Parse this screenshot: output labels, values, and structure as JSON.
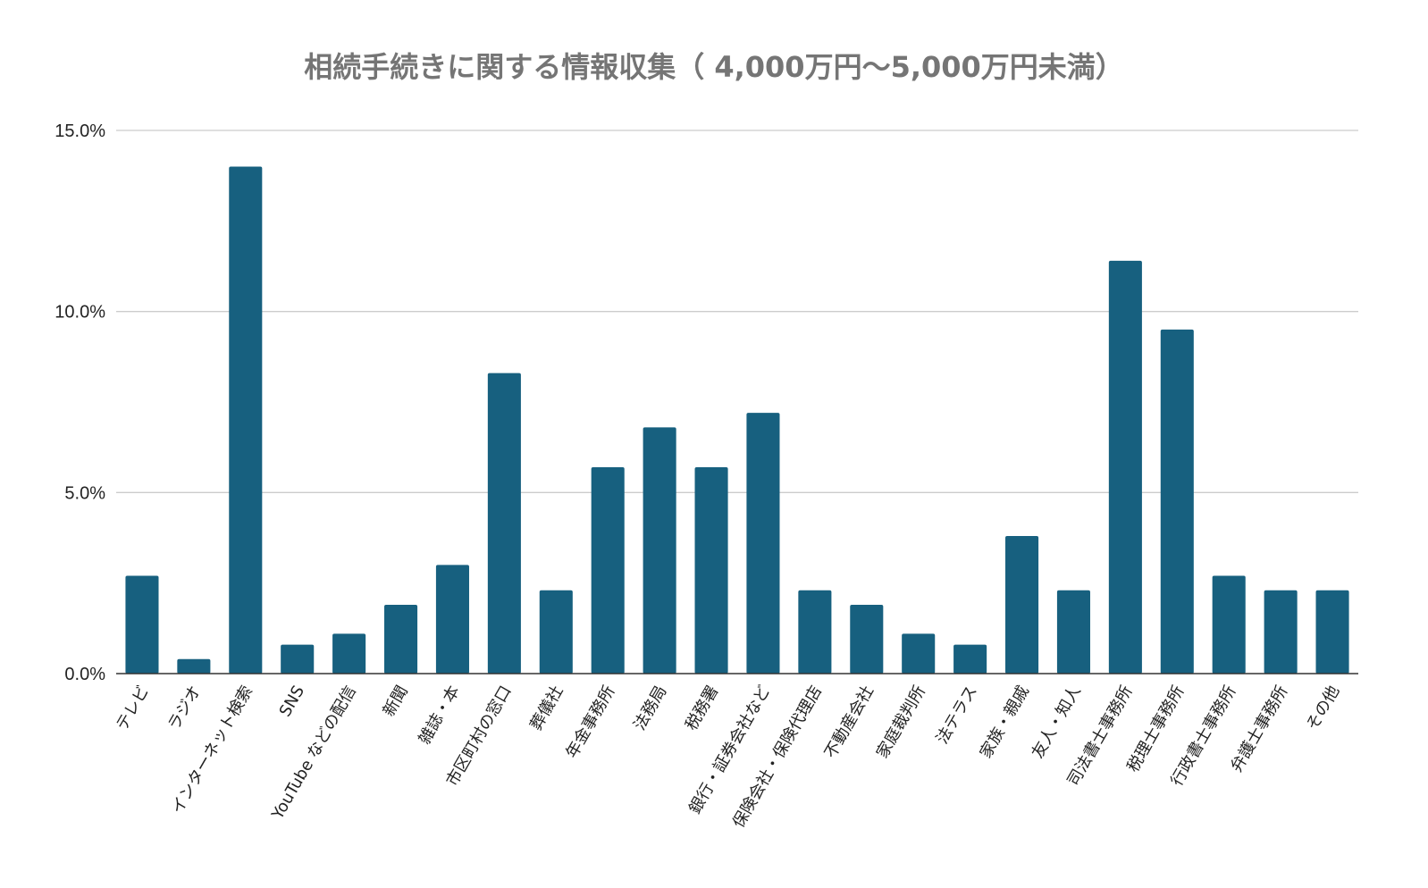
{
  "chart_data": {
    "type": "bar",
    "title": "相続手続きに関する情報収集（ 4,000万円～5,000万円未満）",
    "xlabel": "",
    "ylabel": "",
    "ylim": [
      0,
      15
    ],
    "yticks": [
      0,
      5,
      10,
      15
    ],
    "ytick_labels": [
      "0.0%",
      "5.0%",
      "10.0%",
      "15.0%"
    ],
    "grid": true,
    "bar_color": "#17607f",
    "categories": [
      "テレビ",
      "ラジオ",
      "インターネット検索",
      "SNS",
      "YouTube などの配信",
      "新聞",
      "雑誌・本",
      "市区町村の窓口",
      "葬儀社",
      "年金事務所",
      "法務局",
      "税務署",
      "銀行・証券会社など",
      "保険会社・保険代理店",
      "不動産会社",
      "家庭裁判所",
      "法テラス",
      "家族・親戚",
      "友人・知人",
      "司法書士事務所",
      "税理士事務所",
      "行政書士事務所",
      "弁護士事務所",
      "その他"
    ],
    "values": [
      2.7,
      0.4,
      14.0,
      0.8,
      1.1,
      1.9,
      3.0,
      8.3,
      2.3,
      5.7,
      6.8,
      5.7,
      7.2,
      2.3,
      1.9,
      1.1,
      0.8,
      3.8,
      2.3,
      11.4,
      9.5,
      2.7,
      2.3,
      2.3
    ]
  }
}
